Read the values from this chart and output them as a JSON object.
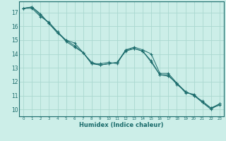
{
  "xlabel": "Humidex (Indice chaleur)",
  "bg_color": "#cceee8",
  "grid_color": "#aad8d0",
  "line_color": "#1a6b6b",
  "spine_color": "#1a6b6b",
  "xlim": [
    -0.5,
    23.5
  ],
  "ylim": [
    9.5,
    17.8
  ],
  "xticks": [
    0,
    1,
    2,
    3,
    4,
    5,
    6,
    7,
    8,
    9,
    10,
    11,
    12,
    13,
    14,
    15,
    16,
    17,
    18,
    19,
    20,
    21,
    22,
    23
  ],
  "yticks": [
    10,
    11,
    12,
    13,
    14,
    15,
    16,
    17
  ],
  "series": [
    {
      "x": [
        0,
        1,
        2,
        3,
        4,
        5,
        6,
        7,
        8,
        9,
        10,
        11,
        12,
        13,
        14,
        15,
        16,
        17,
        18,
        19,
        20,
        21,
        22,
        23
      ],
      "y": [
        17.3,
        17.4,
        16.9,
        16.2,
        15.5,
        15.0,
        14.8,
        14.1,
        13.3,
        13.3,
        13.4,
        13.3,
        14.3,
        14.5,
        14.3,
        14.0,
        12.6,
        12.6,
        11.9,
        11.2,
        11.1,
        10.5,
        10.0,
        10.4
      ]
    },
    {
      "x": [
        0,
        1,
        2,
        3,
        4,
        5,
        6,
        7,
        8,
        9,
        10,
        11,
        12,
        13,
        14,
        15,
        16,
        17,
        18,
        19,
        20,
        21,
        22,
        23
      ],
      "y": [
        17.3,
        17.4,
        16.8,
        16.2,
        15.6,
        14.9,
        14.5,
        14.1,
        13.4,
        13.2,
        13.3,
        13.4,
        14.3,
        14.4,
        14.2,
        13.5,
        12.5,
        12.5,
        11.8,
        11.3,
        11.0,
        10.5,
        10.1,
        10.3
      ]
    },
    {
      "x": [
        0,
        1,
        2,
        3,
        4,
        5,
        6,
        7,
        8,
        9,
        10,
        11,
        12,
        13,
        14,
        15,
        16,
        17,
        18,
        19,
        20,
        21,
        22,
        23
      ],
      "y": [
        17.3,
        17.3,
        16.7,
        16.3,
        15.6,
        15.0,
        14.6,
        14.1,
        13.3,
        13.2,
        13.3,
        13.4,
        14.2,
        14.4,
        14.2,
        13.4,
        12.5,
        12.4,
        11.9,
        11.3,
        11.0,
        10.6,
        10.1,
        10.4
      ]
    }
  ]
}
